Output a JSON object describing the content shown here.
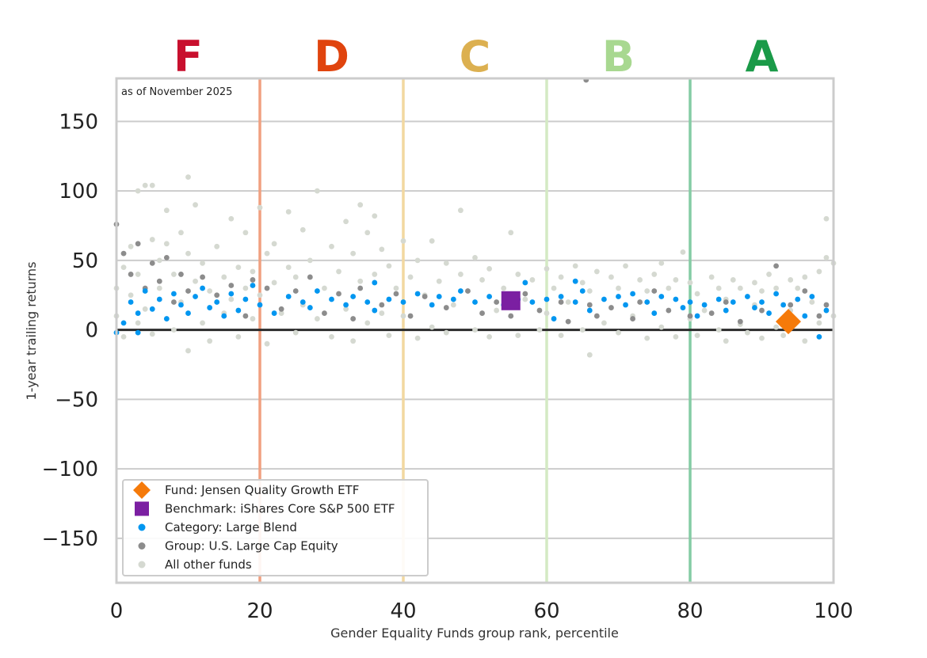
{
  "chart_data": {
    "type": "scatter",
    "annotation": "as of November 2025",
    "xlabel": "Gender Equality Funds group rank, percentile",
    "ylabel": "1-year trailing returns",
    "xlim": [
      0,
      100
    ],
    "ylim": [
      -182,
      181
    ],
    "xticks": [
      "0",
      "20",
      "40",
      "60",
      "80",
      "100"
    ],
    "yticks": [
      "150",
      "100",
      "50",
      "0",
      "−50",
      "−100",
      "−150"
    ],
    "grid": true,
    "legend_position": "bottom-left",
    "grades": [
      {
        "label": "F",
        "color": "#c8102e",
        "center": 10
      },
      {
        "label": "D",
        "color": "#e0440e",
        "center": 30
      },
      {
        "label": "C",
        "color": "#dcb050",
        "center": 50
      },
      {
        "label": "B",
        "color": "#a8d890",
        "center": 70
      },
      {
        "label": "A",
        "color": "#1a9a48",
        "center": 90
      }
    ],
    "grade_boundaries": [
      {
        "x": 20,
        "color": "#f0a080"
      },
      {
        "x": 40,
        "color": "#f2d8a0"
      },
      {
        "x": 60,
        "color": "#d4eac4"
      },
      {
        "x": 80,
        "color": "#84cca4"
      }
    ],
    "series": [
      {
        "name": "All other funds",
        "color": "#d5d9d1",
        "marker": "circle",
        "points": [
          [
            0,
            30
          ],
          [
            0,
            10
          ],
          [
            1,
            45
          ],
          [
            1,
            -5
          ],
          [
            2,
            60
          ],
          [
            2,
            25
          ],
          [
            3,
            100
          ],
          [
            3,
            5
          ],
          [
            3,
            40
          ],
          [
            4,
            104
          ],
          [
            4,
            15
          ],
          [
            5,
            104
          ],
          [
            5,
            65
          ],
          [
            5,
            -3
          ],
          [
            6,
            30
          ],
          [
            6,
            50
          ],
          [
            7,
            86
          ],
          [
            7,
            62
          ],
          [
            8,
            0
          ],
          [
            8,
            40
          ],
          [
            9,
            70
          ],
          [
            9,
            20
          ],
          [
            10,
            -15
          ],
          [
            10,
            110
          ],
          [
            10,
            55
          ],
          [
            11,
            35
          ],
          [
            11,
            90
          ],
          [
            12,
            5
          ],
          [
            12,
            48
          ],
          [
            13,
            28
          ],
          [
            13,
            -8
          ],
          [
            14,
            60
          ],
          [
            15,
            38
          ],
          [
            15,
            12
          ],
          [
            16,
            80
          ],
          [
            16,
            22
          ],
          [
            17,
            -5
          ],
          [
            17,
            45
          ],
          [
            18,
            30
          ],
          [
            18,
            70
          ],
          [
            19,
            8
          ],
          [
            19,
            42
          ],
          [
            20,
            88
          ],
          [
            20,
            25
          ],
          [
            21,
            -10
          ],
          [
            21,
            55
          ],
          [
            22,
            34
          ],
          [
            22,
            62
          ],
          [
            23,
            12
          ],
          [
            24,
            45
          ],
          [
            24,
            85
          ],
          [
            25,
            -2
          ],
          [
            25,
            38
          ],
          [
            26,
            72
          ],
          [
            26,
            18
          ],
          [
            27,
            50
          ],
          [
            28,
            100
          ],
          [
            28,
            8
          ],
          [
            29,
            30
          ],
          [
            30,
            60
          ],
          [
            30,
            -5
          ],
          [
            31,
            42
          ],
          [
            32,
            78
          ],
          [
            32,
            15
          ],
          [
            33,
            55
          ],
          [
            33,
            -8
          ],
          [
            34,
            90
          ],
          [
            34,
            35
          ],
          [
            35,
            70
          ],
          [
            35,
            5
          ],
          [
            36,
            82
          ],
          [
            36,
            40
          ],
          [
            37,
            12
          ],
          [
            37,
            58
          ],
          [
            38,
            -4
          ],
          [
            38,
            46
          ],
          [
            39,
            30
          ],
          [
            40,
            64
          ],
          [
            40,
            10
          ],
          [
            41,
            38
          ],
          [
            42,
            -6
          ],
          [
            42,
            50
          ],
          [
            43,
            25
          ],
          [
            44,
            64
          ],
          [
            44,
            2
          ],
          [
            45,
            35
          ],
          [
            46,
            48
          ],
          [
            46,
            -2
          ],
          [
            47,
            18
          ],
          [
            48,
            86
          ],
          [
            48,
            40
          ],
          [
            49,
            28
          ],
          [
            50,
            52
          ],
          [
            50,
            0
          ],
          [
            51,
            36
          ],
          [
            52,
            -5
          ],
          [
            52,
            44
          ],
          [
            53,
            14
          ],
          [
            54,
            30
          ],
          [
            55,
            70
          ],
          [
            56,
            -4
          ],
          [
            56,
            40
          ],
          [
            57,
            22
          ],
          [
            58,
            36
          ],
          [
            59,
            0
          ],
          [
            60,
            44
          ],
          [
            60,
            12
          ],
          [
            61,
            30
          ],
          [
            62,
            -4
          ],
          [
            62,
            38
          ],
          [
            63,
            20
          ],
          [
            64,
            46
          ],
          [
            65,
            0
          ],
          [
            65,
            34
          ],
          [
            66,
            -18
          ],
          [
            66,
            28
          ],
          [
            67,
            42
          ],
          [
            68,
            5
          ],
          [
            69,
            38
          ],
          [
            70,
            -2
          ],
          [
            70,
            30
          ],
          [
            71,
            46
          ],
          [
            72,
            10
          ],
          [
            73,
            36
          ],
          [
            74,
            -6
          ],
          [
            74,
            28
          ],
          [
            75,
            40
          ],
          [
            76,
            48
          ],
          [
            76,
            2
          ],
          [
            77,
            30
          ],
          [
            78,
            -5
          ],
          [
            78,
            36
          ],
          [
            79,
            56
          ],
          [
            80,
            8
          ],
          [
            80,
            34
          ],
          [
            81,
            -4
          ],
          [
            81,
            26
          ],
          [
            82,
            14
          ],
          [
            83,
            38
          ],
          [
            84,
            0
          ],
          [
            84,
            30
          ],
          [
            85,
            -8
          ],
          [
            85,
            22
          ],
          [
            86,
            36
          ],
          [
            87,
            4
          ],
          [
            87,
            30
          ],
          [
            88,
            -2
          ],
          [
            89,
            34
          ],
          [
            89,
            18
          ],
          [
            90,
            -6
          ],
          [
            90,
            28
          ],
          [
            91,
            40
          ],
          [
            92,
            2
          ],
          [
            92,
            30
          ],
          [
            93,
            -4
          ],
          [
            94,
            36
          ],
          [
            94,
            14
          ],
          [
            95,
            30
          ],
          [
            96,
            -8
          ],
          [
            96,
            38
          ],
          [
            97,
            20
          ],
          [
            98,
            42
          ],
          [
            98,
            5
          ],
          [
            99,
            80
          ],
          [
            99,
            52
          ],
          [
            100,
            48
          ],
          [
            100,
            10
          ]
        ]
      },
      {
        "name": "Group: U.S. Large Cap Equity",
        "color": "#8c8c8c",
        "marker": "circle",
        "points": [
          [
            0,
            76
          ],
          [
            1,
            55
          ],
          [
            2,
            40
          ],
          [
            3,
            62
          ],
          [
            4,
            30
          ],
          [
            5,
            48
          ],
          [
            6,
            35
          ],
          [
            7,
            52
          ],
          [
            8,
            20
          ],
          [
            9,
            40
          ],
          [
            10,
            28
          ],
          [
            12,
            38
          ],
          [
            14,
            25
          ],
          [
            16,
            32
          ],
          [
            18,
            10
          ],
          [
            19,
            36
          ],
          [
            21,
            30
          ],
          [
            23,
            15
          ],
          [
            25,
            28
          ],
          [
            27,
            38
          ],
          [
            29,
            12
          ],
          [
            31,
            26
          ],
          [
            33,
            8
          ],
          [
            34,
            30
          ],
          [
            37,
            18
          ],
          [
            39,
            26
          ],
          [
            41,
            10
          ],
          [
            43,
            24
          ],
          [
            46,
            16
          ],
          [
            49,
            28
          ],
          [
            51,
            12
          ],
          [
            53,
            20
          ],
          [
            55,
            10
          ],
          [
            57,
            26
          ],
          [
            59,
            14
          ],
          [
            62,
            20
          ],
          [
            63,
            6
          ],
          [
            66,
            18
          ],
          [
            67,
            10
          ],
          [
            69,
            16
          ],
          [
            72,
            8
          ],
          [
            73,
            20
          ],
          [
            75,
            28
          ],
          [
            77,
            14
          ],
          [
            80,
            10
          ],
          [
            83,
            12
          ],
          [
            85,
            20
          ],
          [
            87,
            6
          ],
          [
            90,
            14
          ],
          [
            92,
            46
          ],
          [
            94,
            18
          ],
          [
            96,
            28
          ],
          [
            98,
            10
          ],
          [
            99,
            18
          ],
          [
            65.5,
            180
          ]
        ]
      },
      {
        "name": "Category: Large Blend",
        "color": "#0096f0",
        "marker": "circle",
        "points": [
          [
            0,
            -2
          ],
          [
            1,
            5
          ],
          [
            2,
            20
          ],
          [
            3,
            12
          ],
          [
            3,
            -2
          ],
          [
            4,
            28
          ],
          [
            5,
            15
          ],
          [
            6,
            22
          ],
          [
            7,
            8
          ],
          [
            8,
            26
          ],
          [
            9,
            18
          ],
          [
            10,
            12
          ],
          [
            11,
            24
          ],
          [
            12,
            30
          ],
          [
            13,
            16
          ],
          [
            14,
            20
          ],
          [
            15,
            10
          ],
          [
            16,
            26
          ],
          [
            17,
            14
          ],
          [
            18,
            22
          ],
          [
            19,
            32
          ],
          [
            20,
            18
          ],
          [
            22,
            12
          ],
          [
            24,
            24
          ],
          [
            26,
            20
          ],
          [
            27,
            16
          ],
          [
            28,
            28
          ],
          [
            30,
            22
          ],
          [
            32,
            18
          ],
          [
            33,
            24
          ],
          [
            35,
            20
          ],
          [
            36,
            14
          ],
          [
            36,
            34
          ],
          [
            38,
            22
          ],
          [
            40,
            20
          ],
          [
            42,
            26
          ],
          [
            44,
            18
          ],
          [
            45,
            24
          ],
          [
            47,
            22
          ],
          [
            48,
            28
          ],
          [
            50,
            20
          ],
          [
            52,
            24
          ],
          [
            54,
            18
          ],
          [
            56,
            22
          ],
          [
            57,
            34
          ],
          [
            58,
            20
          ],
          [
            60,
            22
          ],
          [
            61,
            8
          ],
          [
            62,
            24
          ],
          [
            64,
            20
          ],
          [
            64,
            35
          ],
          [
            65,
            28
          ],
          [
            66,
            14
          ],
          [
            68,
            22
          ],
          [
            70,
            24
          ],
          [
            71,
            18
          ],
          [
            72,
            26
          ],
          [
            74,
            20
          ],
          [
            75,
            12
          ],
          [
            76,
            24
          ],
          [
            78,
            22
          ],
          [
            79,
            16
          ],
          [
            80,
            20
          ],
          [
            81,
            10
          ],
          [
            82,
            18
          ],
          [
            84,
            22
          ],
          [
            85,
            14
          ],
          [
            86,
            20
          ],
          [
            88,
            24
          ],
          [
            89,
            16
          ],
          [
            90,
            20
          ],
          [
            91,
            12
          ],
          [
            92,
            26
          ],
          [
            93,
            18
          ],
          [
            95,
            22
          ],
          [
            96,
            10
          ],
          [
            97,
            24
          ],
          [
            98,
            -5
          ],
          [
            99,
            14
          ]
        ]
      },
      {
        "name": "Benchmark: iShares Core S&P 500 ETF",
        "color": "#7b1fa2",
        "marker": "square",
        "points": [
          [
            55,
            21
          ]
        ]
      },
      {
        "name": "Fund: Jensen Quality Growth ETF",
        "color": "#f57a0a",
        "marker": "diamond",
        "points": [
          [
            93.7,
            6
          ]
        ]
      }
    ]
  }
}
